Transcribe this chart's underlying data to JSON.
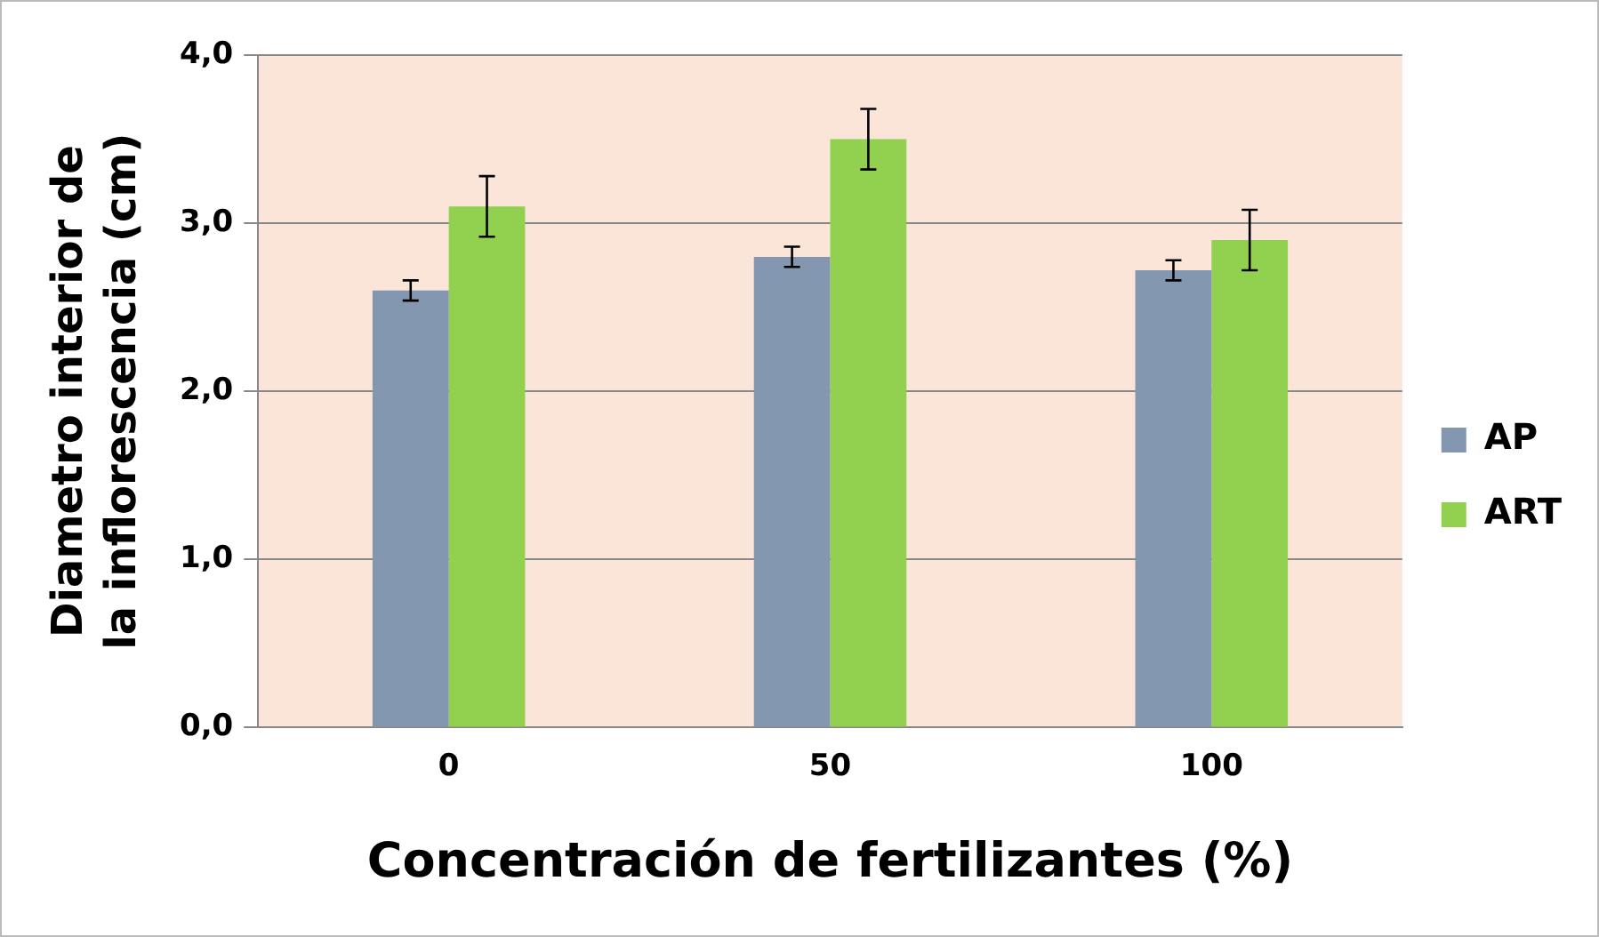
{
  "chart_data": {
    "type": "bar",
    "xlabel": "Concentración de fertilizantes (%)",
    "ylabel": "Diametro interior de la inflorescencia (cm)",
    "categories": [
      "0",
      "50",
      "100"
    ],
    "series": [
      {
        "name": "AP",
        "color": "#8497b0",
        "values": [
          2.6,
          2.8,
          2.72
        ],
        "errors": [
          0.06,
          0.06,
          0.06
        ]
      },
      {
        "name": "ART",
        "color": "#92d050",
        "values": [
          3.1,
          3.5,
          2.9
        ],
        "errors": [
          0.18,
          0.18,
          0.18
        ]
      }
    ],
    "ylim": [
      0,
      4
    ],
    "yticks": [
      {
        "value": 0,
        "label": "0,0"
      },
      {
        "value": 1,
        "label": "1,0"
      },
      {
        "value": 2,
        "label": "2,0"
      },
      {
        "value": 3,
        "label": "3,0"
      },
      {
        "value": 4,
        "label": "4,0"
      }
    ],
    "grid": "y",
    "legend": "right"
  }
}
